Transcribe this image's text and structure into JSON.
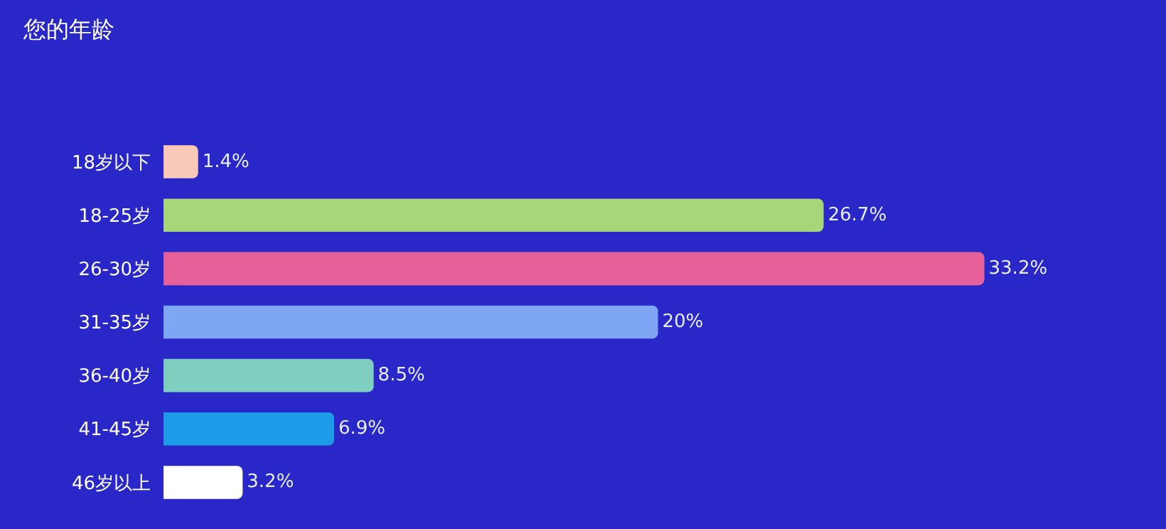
{
  "chart_data": {
    "type": "bar",
    "orientation": "horizontal",
    "title": "您的年龄",
    "categories": [
      "18岁以下",
      "18-25岁",
      "26-30岁",
      "31-35岁",
      "36-40岁",
      "41-45岁",
      "46岁以上"
    ],
    "values": [
      1.4,
      26.7,
      33.2,
      20,
      8.5,
      6.9,
      3.2
    ],
    "value_labels": [
      "1.4%",
      "26.7%",
      "33.2%",
      "20%",
      "8.5%",
      "6.9%",
      "3.2%"
    ],
    "colors": [
      "#f8c9b8",
      "#a8d57a",
      "#e8609a",
      "#7ea6f5",
      "#7fcfc0",
      "#1e9be8",
      "#ffffff"
    ],
    "legend": false
  }
}
